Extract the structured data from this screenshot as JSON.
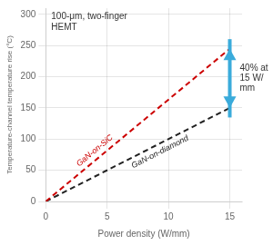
{
  "chart_data": {
    "type": "line",
    "xlabel": "Power density (W/mm)",
    "ylabel": "Temperature-channel temperature rise (°C)",
    "x": [
      0,
      15
    ],
    "series": [
      {
        "name": "GaN-on-SiC",
        "color": "#cc0000",
        "values": [
          0,
          245
        ],
        "line_style": "dashed"
      },
      {
        "name": "GaN-on-diamond",
        "color": "#222222",
        "values": [
          0,
          150
        ],
        "line_style": "dashed"
      }
    ],
    "xlim": [
      0,
      16
    ],
    "ylim": [
      0,
      310
    ],
    "xticks": [
      0,
      5,
      10,
      15
    ],
    "yticks": [
      0,
      50,
      100,
      150,
      200,
      250,
      300
    ],
    "grid": true,
    "annotations": [
      {
        "text": "100-μm, two-finger\nHEMT"
      },
      {
        "text": "40% at\n15 W/\nmm",
        "arrow": {
          "x": 15,
          "from": 150,
          "to": 245,
          "color": "#3aabdb"
        }
      }
    ]
  }
}
